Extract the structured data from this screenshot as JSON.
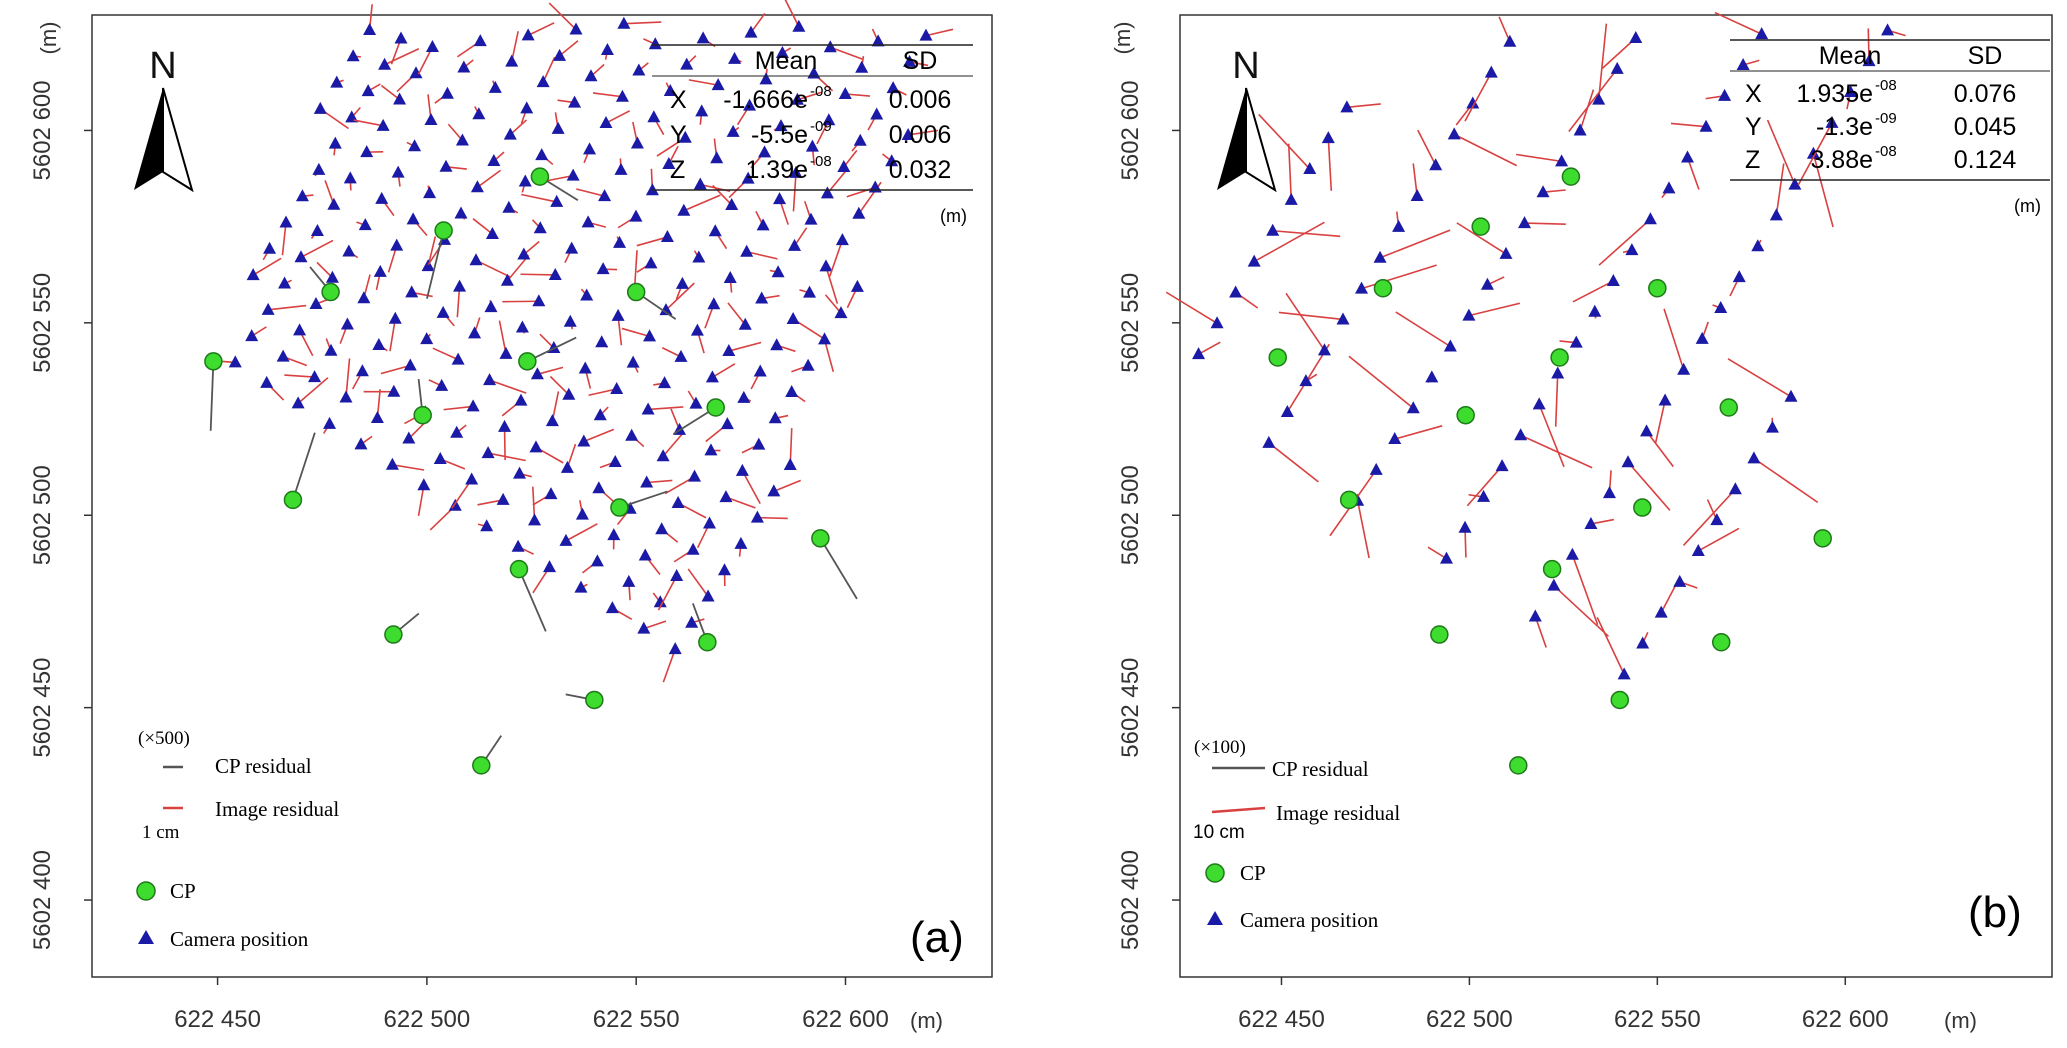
{
  "figure": {
    "panels": [
      {
        "id": "a",
        "panel_label": "(a)",
        "north_label": "N",
        "y_unit": "(m)",
        "x_unit": "(m)",
        "unit_note": "(m)",
        "stats_table": {
          "headers": [
            "",
            "Mean",
            "SD"
          ],
          "rows": [
            {
              "axis": "X",
              "mean_base": "-1.666e",
              "mean_exp": "-08",
              "sd": "0.006"
            },
            {
              "axis": "Y",
              "mean_base": "-5.5e",
              "mean_exp": "-09",
              "sd": "0.006"
            },
            {
              "axis": "Z",
              "mean_base": "1.39e",
              "mean_exp": "-08",
              "sd": "0.032"
            }
          ]
        },
        "legend": {
          "scale_factor": "(×500)",
          "scale_length": "1 cm",
          "cp_residual": "CP residual",
          "image_residual": "Image residual",
          "cp": "CP",
          "camera": "Camera position"
        }
      },
      {
        "id": "b",
        "panel_label": "(b)",
        "north_label": "N",
        "y_unit": "(m)",
        "x_unit": "(m)",
        "unit_note": "(m)",
        "stats_table": {
          "headers": [
            "",
            "Mean",
            "SD"
          ],
          "rows": [
            {
              "axis": "X",
              "mean_base": "1.935e",
              "mean_exp": "-08",
              "sd": "0.076"
            },
            {
              "axis": "Y",
              "mean_base": "-1.3e",
              "mean_exp": "-09",
              "sd": "0.045"
            },
            {
              "axis": "Z",
              "mean_base": "3.88e",
              "mean_exp": "-08",
              "sd": "0.124"
            }
          ]
        },
        "legend": {
          "scale_factor": "(×100)",
          "scale_length": "10 cm",
          "cp_residual": "CP residual",
          "image_residual": "Image residual",
          "cp": "CP",
          "camera": "Camera position"
        }
      }
    ]
  },
  "colors": {
    "camera": "#1a1aa6",
    "cp_fill": "#3ddc2e",
    "cp_stroke": "#1f7a19",
    "image_residual": "#d94040",
    "cp_residual": "#555555",
    "axis": "#333333"
  },
  "chart_data": [
    {
      "type": "scatter",
      "panel": "(a)",
      "x_ticks": [
        "622 450",
        "622 500",
        "622 550",
        "622 600"
      ],
      "y_ticks": [
        "5602 600",
        "5602 550",
        "5602 500",
        "5602 450",
        "5602 400"
      ],
      "xlabel": "(m)",
      "ylabel": "(m)",
      "xlim": [
        622420,
        622635
      ],
      "ylim": [
        5602380,
        5602630
      ],
      "camera_grid": {
        "strips": 18,
        "spacing_across_m": 9,
        "spacing_along_m": 5.5
      },
      "cp_points": [
        {
          "x": 622527,
          "y": 5602588
        },
        {
          "x": 622504,
          "y": 5602574
        },
        {
          "x": 622477,
          "y": 5602558
        },
        {
          "x": 622550,
          "y": 5602558
        },
        {
          "x": 622449,
          "y": 5602540
        },
        {
          "x": 622524,
          "y": 5602540
        },
        {
          "x": 622499,
          "y": 5602526
        },
        {
          "x": 622569,
          "y": 5602528
        },
        {
          "x": 622468,
          "y": 5602504
        },
        {
          "x": 622546,
          "y": 5602502
        },
        {
          "x": 622594,
          "y": 5602494
        },
        {
          "x": 622522,
          "y": 5602486
        },
        {
          "x": 622492,
          "y": 5602469
        },
        {
          "x": 622567,
          "y": 5602467
        },
        {
          "x": 622540,
          "y": 5602452
        },
        {
          "x": 622513,
          "y": 5602435
        }
      ]
    },
    {
      "type": "scatter",
      "panel": "(b)",
      "x_ticks": [
        "622 450",
        "622 500",
        "622 550",
        "622 600"
      ],
      "y_ticks": [
        "5602 600",
        "5602 550",
        "5602 500",
        "5602 450",
        "5602 400"
      ],
      "xlabel": "(m)",
      "ylabel": "(m)",
      "xlim": [
        622423,
        622655
      ],
      "ylim": [
        5602380,
        5602630
      ],
      "camera_grid": {
        "strips": 6,
        "spacing_across_m": 26,
        "spacing_along_m": 9
      },
      "cp_points": [
        {
          "x": 622527,
          "y": 5602588
        },
        {
          "x": 622503,
          "y": 5602575
        },
        {
          "x": 622477,
          "y": 5602559
        },
        {
          "x": 622550,
          "y": 5602559
        },
        {
          "x": 622449,
          "y": 5602541
        },
        {
          "x": 622524,
          "y": 5602541
        },
        {
          "x": 622499,
          "y": 5602526
        },
        {
          "x": 622569,
          "y": 5602528
        },
        {
          "x": 622468,
          "y": 5602504
        },
        {
          "x": 622546,
          "y": 5602502
        },
        {
          "x": 622594,
          "y": 5602494
        },
        {
          "x": 622522,
          "y": 5602486
        },
        {
          "x": 622492,
          "y": 5602469
        },
        {
          "x": 622567,
          "y": 5602467
        },
        {
          "x": 622540,
          "y": 5602452
        },
        {
          "x": 622513,
          "y": 5602435
        }
      ]
    }
  ]
}
